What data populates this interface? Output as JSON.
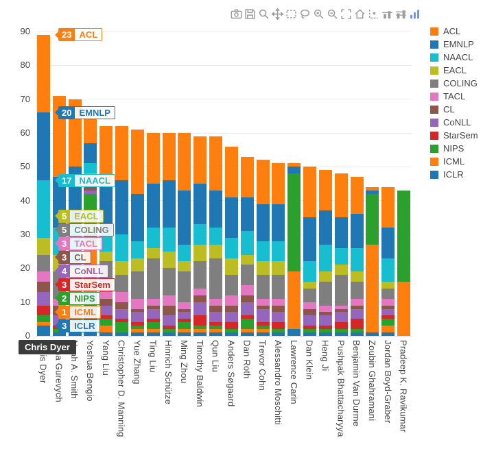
{
  "modebar": {
    "icons": [
      "camera-icon",
      "save-icon",
      "zoom-icon",
      "pan-icon",
      "box-select-icon",
      "lasso-select-icon",
      "zoom-in-icon",
      "zoom-out-icon",
      "autoscale-icon",
      "reset-axes-icon",
      "toggle-spikelines-icon",
      "hover-closest-icon",
      "hover-compare-icon",
      "plotly-logo-icon"
    ]
  },
  "hover": {
    "category": "Chris Dyer"
  },
  "chart_data": {
    "type": "bar",
    "stacked": true,
    "orientation": "vertical",
    "grid": true,
    "legend_position": "right",
    "ylim": [
      0,
      90
    ],
    "yticks": [
      0,
      10,
      20,
      30,
      40,
      50,
      60,
      70,
      80,
      90
    ],
    "hovered_category_index": 0,
    "categories": [
      "Chris Dyer",
      "Iryna Gurevych",
      "Noah A. Smith",
      "Yoshua Bengio",
      "Yang Liu",
      "Christopher D. Manning",
      "Yue Zhang",
      "Ting Liu",
      "Hinrich Schütze",
      "Ming Zhou",
      "Timothy Baldwin",
      "Qun Liu",
      "Anders Søgaard",
      "Dan Roth",
      "Trevor Cohn",
      "Alessandro Moschitti",
      "Lawrence Carin",
      "Dan Klein",
      "Heng Ji",
      "Pushpak Bhattacharyya",
      "Benjamin Van Durme",
      "Zoubin Ghahramani",
      "Jordan Boyd-Graber",
      "Pradeep K. Ravikumar"
    ],
    "series": [
      {
        "name": "ACL",
        "color": "#ff7f0e",
        "values": [
          23,
          24,
          20,
          7,
          18,
          16,
          19,
          15,
          14,
          17,
          14,
          16,
          15,
          12,
          13,
          12,
          1,
          15,
          12,
          13,
          11,
          1,
          12,
          0
        ]
      },
      {
        "name": "EMNLP",
        "color": "#1f77b4",
        "values": [
          20,
          15,
          18,
          6,
          13,
          16,
          14,
          13,
          14,
          16,
          12,
          11,
          12,
          10,
          11,
          11,
          2,
          13,
          10,
          9,
          10,
          1,
          9,
          0
        ]
      },
      {
        "name": "NAACL",
        "color": "#17becf",
        "values": [
          17,
          8,
          12,
          3,
          6,
          8,
          5,
          6,
          7,
          5,
          6,
          5,
          6,
          7,
          6,
          6,
          0,
          6,
          8,
          5,
          7,
          0,
          7,
          0
        ]
      },
      {
        "name": "EACL",
        "color": "#bcbd22",
        "values": [
          5,
          5,
          4,
          1,
          3,
          4,
          4,
          3,
          5,
          3,
          5,
          4,
          5,
          3,
          4,
          4,
          0,
          2,
          3,
          3,
          3,
          0,
          2,
          0
        ]
      },
      {
        "name": "COLING",
        "color": "#7f7f7f",
        "values": [
          5,
          8,
          4,
          2,
          9,
          5,
          8,
          12,
          8,
          9,
          8,
          12,
          6,
          6,
          7,
          7,
          0,
          4,
          7,
          9,
          5,
          0,
          3,
          0
        ]
      },
      {
        "name": "TACL",
        "color": "#e377c2",
        "values": [
          3,
          2,
          3,
          1,
          2,
          3,
          3,
          2,
          3,
          2,
          2,
          2,
          3,
          3,
          2,
          2,
          0,
          2,
          2,
          1,
          2,
          0,
          2,
          0
        ]
      },
      {
        "name": "CL",
        "color": "#8c564b",
        "values": [
          3,
          3,
          2,
          1,
          2,
          2,
          1,
          1,
          3,
          1,
          2,
          2,
          2,
          2,
          1,
          2,
          0,
          2,
          1,
          1,
          1,
          0,
          1,
          0
        ]
      },
      {
        "name": "CoNLL",
        "color": "#9467bd",
        "values": [
          4,
          3,
          3,
          1,
          3,
          3,
          3,
          3,
          3,
          2,
          4,
          3,
          3,
          4,
          4,
          3,
          0,
          3,
          3,
          3,
          3,
          0,
          2,
          0
        ]
      },
      {
        "name": "StarSem",
        "color": "#d62728",
        "values": [
          3,
          1,
          1,
          0,
          1,
          1,
          1,
          1,
          1,
          1,
          3,
          1,
          2,
          1,
          1,
          2,
          0,
          1,
          1,
          2,
          3,
          0,
          1,
          0
        ]
      },
      {
        "name": "NIPS",
        "color": "#2ca02c",
        "values": [
          2,
          1,
          2,
          15,
          2,
          3,
          1,
          2,
          1,
          2,
          1,
          1,
          1,
          3,
          1,
          1,
          29,
          1,
          1,
          1,
          1,
          15,
          2,
          27
        ]
      },
      {
        "name": "ICML",
        "color": "#ff7f0e",
        "values": [
          1,
          0,
          0,
          14,
          2,
          0,
          1,
          1,
          0,
          1,
          1,
          1,
          0,
          1,
          1,
          0,
          17,
          0,
          0,
          0,
          0,
          26,
          2,
          16
        ]
      },
      {
        "name": "ICLR",
        "color": "#1f77b4",
        "values": [
          3,
          1,
          1,
          13,
          1,
          1,
          1,
          1,
          1,
          1,
          1,
          1,
          1,
          1,
          1,
          1,
          2,
          1,
          1,
          1,
          1,
          1,
          1,
          0
        ]
      }
    ]
  }
}
